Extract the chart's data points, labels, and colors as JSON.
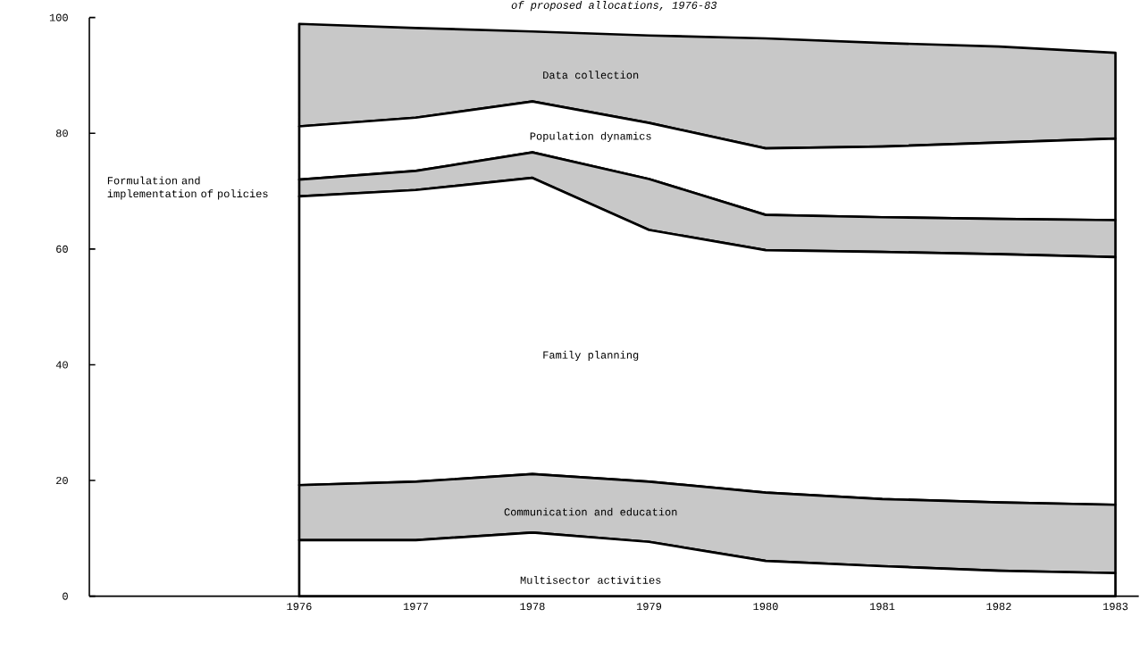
{
  "chart_data": {
    "type": "area",
    "stacked": true,
    "title": "of proposed allocations, 1976-83",
    "x": [
      1976,
      1977,
      1978,
      1979,
      1980,
      1981,
      1982,
      1983
    ],
    "xlim": [
      1974.2,
      1983.2
    ],
    "xticks": [
      1976,
      1977,
      1978,
      1979,
      1980,
      1981,
      1982,
      1983
    ],
    "ylim": [
      0,
      100
    ],
    "yticks": [
      0,
      20,
      40,
      60,
      80,
      100
    ],
    "series": [
      {
        "name": "Multisector activities",
        "color": "#ffffff",
        "values": [
          9.7,
          9.7,
          11.0,
          9.4,
          6.1,
          5.2,
          4.4,
          4.0
        ]
      },
      {
        "name": "Communication and education",
        "color": "#c8c8c8",
        "values": [
          9.5,
          10.1,
          10.1,
          10.4,
          11.8,
          11.6,
          11.8,
          11.8
        ]
      },
      {
        "name": "Family planning",
        "color": "#ffffff",
        "values": [
          49.9,
          50.4,
          51.2,
          43.5,
          41.9,
          42.7,
          42.9,
          42.8
        ]
      },
      {
        "name": "Formulation and implementation of policies",
        "color": "#c8c8c8",
        "values": [
          2.9,
          3.3,
          4.4,
          8.8,
          6.1,
          6.0,
          6.1,
          6.4
        ]
      },
      {
        "name": "Population dynamics",
        "color": "#ffffff",
        "values": [
          9.2,
          9.2,
          8.8,
          9.7,
          11.5,
          12.2,
          13.2,
          14.1
        ]
      },
      {
        "name": "Data collection",
        "color": "#c8c8c8",
        "values": [
          17.7,
          15.5,
          12.1,
          15.1,
          19.0,
          17.9,
          16.6,
          14.8
        ]
      }
    ]
  }
}
